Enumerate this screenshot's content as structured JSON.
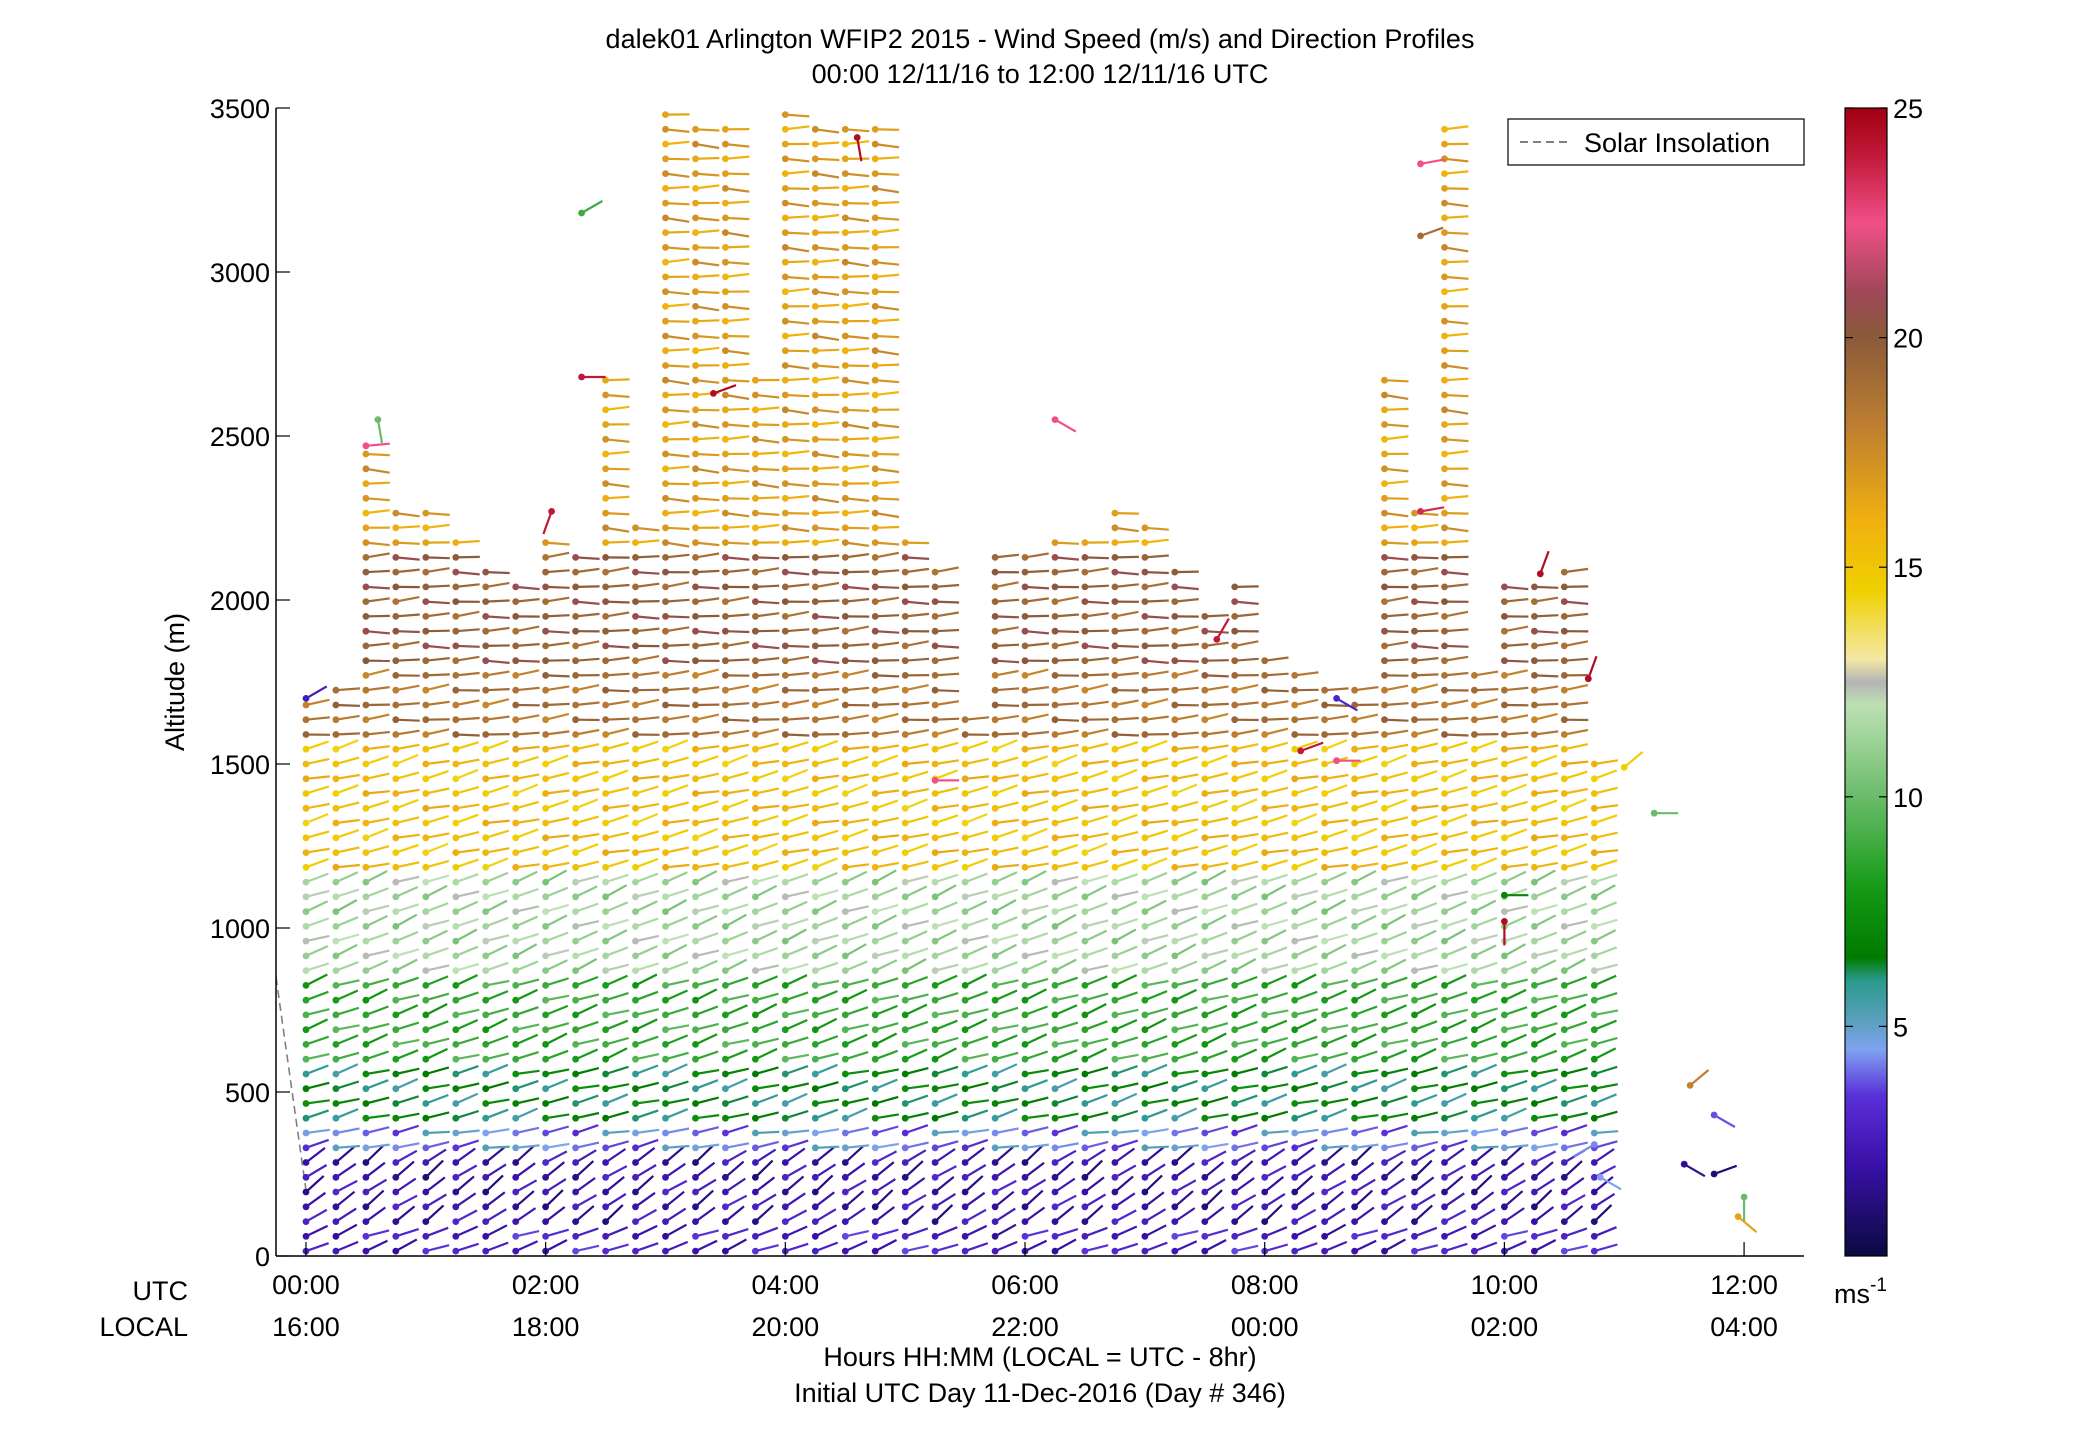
{
  "chart_data": {
    "type": "wind-barb-profile",
    "title": "dalek01 Arlington WFIP2 2015 - Wind Speed (m/s) and Direction Profiles",
    "subtitle": "00:00 12/11/16 to 12:00 12/11/16  UTC",
    "ylabel": "Altitude (m)",
    "xlabel": "Hours HH:MM  (LOCAL = UTC - 8hr)",
    "xlabel2": "Initial UTC Day 11-Dec-2016 (Day # 346)",
    "xlim": [
      -0.25,
      12.5
    ],
    "ylim": [
      0,
      3500
    ],
    "yticks": [
      0,
      500,
      1000,
      1500,
      2000,
      2500,
      3000,
      3500
    ],
    "xrow_labels": {
      "utc": "UTC",
      "local": "LOCAL"
    },
    "xticks": [
      {
        "h": 0,
        "utc": "00:00",
        "local": "16:00"
      },
      {
        "h": 2,
        "utc": "02:00",
        "local": "18:00"
      },
      {
        "h": 4,
        "utc": "04:00",
        "local": "20:00"
      },
      {
        "h": 6,
        "utc": "06:00",
        "local": "22:00"
      },
      {
        "h": 8,
        "utc": "08:00",
        "local": "00:00"
      },
      {
        "h": 10,
        "utc": "10:00",
        "local": "02:00"
      },
      {
        "h": 12,
        "utc": "12:00",
        "local": "04:00"
      }
    ],
    "legend": {
      "label": "Solar Insolation",
      "position": "top-right",
      "line_color": "#808080",
      "line_style": "dashed"
    },
    "solar_insolation": [
      [
        -0.25,
        850
      ],
      [
        0.0,
        200
      ]
    ],
    "colorbar": {
      "range": [
        0,
        25
      ],
      "ticks": [
        5,
        10,
        15,
        20,
        25
      ],
      "unit": "ms",
      "unit_exp": "-1",
      "stops": [
        {
          "v": 0,
          "c": "#0a0a40"
        },
        {
          "v": 2,
          "c": "#3a10a8"
        },
        {
          "v": 3.5,
          "c": "#5a30d8"
        },
        {
          "v": 4.5,
          "c": "#7fa2f0"
        },
        {
          "v": 5.2,
          "c": "#56a0b8"
        },
        {
          "v": 6,
          "c": "#2a9a8c"
        },
        {
          "v": 6.5,
          "c": "#007a00"
        },
        {
          "v": 8,
          "c": "#159a15"
        },
        {
          "v": 10,
          "c": "#6abc6a"
        },
        {
          "v": 12,
          "c": "#bde0b4"
        },
        {
          "v": 12.5,
          "c": "#b4b4b4"
        },
        {
          "v": 13,
          "c": "#f4e8a4"
        },
        {
          "v": 14.5,
          "c": "#f0d000"
        },
        {
          "v": 16,
          "c": "#f0b010"
        },
        {
          "v": 18,
          "c": "#c08030"
        },
        {
          "v": 20,
          "c": "#8a5a3a"
        },
        {
          "v": 21,
          "c": "#a04858"
        },
        {
          "v": 22.5,
          "c": "#f05088"
        },
        {
          "v": 24,
          "c": "#c01838"
        },
        {
          "v": 25,
          "c": "#a00010"
        }
      ]
    },
    "profile_layers": [
      {
        "from": 0,
        "to": 100,
        "speed": 2.8,
        "dir": 250
      },
      {
        "from": 100,
        "to": 300,
        "speed": 2.2,
        "dir": 235
      },
      {
        "from": 300,
        "to": 420,
        "speed": 4.4,
        "dir": 260
      },
      {
        "from": 420,
        "to": 560,
        "speed": 6.6,
        "dir": 255
      },
      {
        "from": 560,
        "to": 850,
        "speed": 8.8,
        "dir": 252
      },
      {
        "from": 850,
        "to": 1150,
        "speed": 11.5,
        "dir": 250
      },
      {
        "from": 1150,
        "to": 1550,
        "speed": 15.4,
        "dir": 257
      },
      {
        "from": 1550,
        "to": 1800,
        "speed": 18.8,
        "dir": 265
      },
      {
        "from": 1800,
        "to": 2150,
        "speed": 19.8,
        "dir": 268
      },
      {
        "from": 2150,
        "to": 3500,
        "speed": 16.8,
        "dir": 272
      }
    ],
    "profile_tops": [
      {
        "h": 0.0,
        "top": 1700
      },
      {
        "h": 0.25,
        "top": 1750
      },
      {
        "h": 0.5,
        "top": 2450
      },
      {
        "h": 0.75,
        "top": 2300
      },
      {
        "h": 1.0,
        "top": 2300
      },
      {
        "h": 1.25,
        "top": 2200
      },
      {
        "h": 1.5,
        "top": 2100
      },
      {
        "h": 1.75,
        "top": 2050
      },
      {
        "h": 2.0,
        "top": 2200
      },
      {
        "h": 2.25,
        "top": 2150
      },
      {
        "h": 2.5,
        "top": 2700
      },
      {
        "h": 2.75,
        "top": 2250
      },
      {
        "h": 3.0,
        "top": 3480
      },
      {
        "h": 3.25,
        "top": 3470
      },
      {
        "h": 3.5,
        "top": 3470
      },
      {
        "h": 3.75,
        "top": 2700
      },
      {
        "h": 4.0,
        "top": 3480
      },
      {
        "h": 4.25,
        "top": 3470
      },
      {
        "h": 4.5,
        "top": 3470
      },
      {
        "h": 4.75,
        "top": 3470
      },
      {
        "h": 5.0,
        "top": 2200
      },
      {
        "h": 5.25,
        "top": 2100
      },
      {
        "h": 5.5,
        "top": 1650
      },
      {
        "h": 5.75,
        "top": 2150
      },
      {
        "h": 6.0,
        "top": 2150
      },
      {
        "h": 6.25,
        "top": 2200
      },
      {
        "h": 6.5,
        "top": 2200
      },
      {
        "h": 6.75,
        "top": 2300
      },
      {
        "h": 7.0,
        "top": 2250
      },
      {
        "h": 7.25,
        "top": 2100
      },
      {
        "h": 7.5,
        "top": 1950
      },
      {
        "h": 7.75,
        "top": 2050
      },
      {
        "h": 8.0,
        "top": 1850
      },
      {
        "h": 8.25,
        "top": 1800
      },
      {
        "h": 8.5,
        "top": 1750
      },
      {
        "h": 8.75,
        "top": 1750
      },
      {
        "h": 9.0,
        "top": 2700
      },
      {
        "h": 9.25,
        "top": 2300
      },
      {
        "h": 9.5,
        "top": 3460
      },
      {
        "h": 9.75,
        "top": 1800
      },
      {
        "h": 10.0,
        "top": 2050
      },
      {
        "h": 10.25,
        "top": 2080
      },
      {
        "h": 10.5,
        "top": 2090
      },
      {
        "h": 10.75,
        "top": 1500
      }
    ],
    "scattered_barbs": [
      {
        "h": 3.4,
        "alt": 2630,
        "speed": 24.5,
        "dir": 250
      },
      {
        "h": 4.6,
        "alt": 3410,
        "speed": 24.5,
        "dir": 350
      },
      {
        "h": 2.3,
        "alt": 2680,
        "speed": 24.0,
        "dir": 270
      },
      {
        "h": 2.05,
        "alt": 2270,
        "speed": 24.0,
        "dir": 20
      },
      {
        "h": 0.5,
        "alt": 2470,
        "speed": 22.5,
        "dir": 265
      },
      {
        "h": 2.3,
        "alt": 3180,
        "speed": 9.0,
        "dir": 240
      },
      {
        "h": 0.6,
        "alt": 2550,
        "speed": 10.0,
        "dir": 350
      },
      {
        "h": 6.25,
        "alt": 2550,
        "speed": 22.5,
        "dir": 300
      },
      {
        "h": 9.3,
        "alt": 3330,
        "speed": 22.5,
        "dir": 260
      },
      {
        "h": 9.3,
        "alt": 3110,
        "speed": 19.0,
        "dir": 250
      },
      {
        "h": 9.3,
        "alt": 2270,
        "speed": 23.5,
        "dir": 260
      },
      {
        "h": 10.3,
        "alt": 2080,
        "speed": 24.5,
        "dir": 200
      },
      {
        "h": 10.7,
        "alt": 1760,
        "speed": 24.5,
        "dir": 200
      },
      {
        "h": 7.6,
        "alt": 1880,
        "speed": 24.0,
        "dir": 210
      },
      {
        "h": 8.3,
        "alt": 1540,
        "speed": 24.0,
        "dir": 250
      },
      {
        "h": 8.6,
        "alt": 1510,
        "speed": 22.5,
        "dir": 270
      },
      {
        "h": 5.25,
        "alt": 1450,
        "speed": 22.5,
        "dir": 270
      },
      {
        "h": 8.6,
        "alt": 1700,
        "speed": 3.0,
        "dir": 300
      },
      {
        "h": 0.0,
        "alt": 1700,
        "speed": 2.5,
        "dir": 240
      },
      {
        "h": 10.0,
        "alt": 1100,
        "speed": 7.0,
        "dir": 270
      },
      {
        "h": 10.0,
        "alt": 1020,
        "speed": 24.5,
        "dir": 0
      },
      {
        "h": 11.25,
        "alt": 1350,
        "speed": 10.0,
        "dir": 270
      },
      {
        "h": 11.0,
        "alt": 1490,
        "speed": 14.5,
        "dir": 230
      },
      {
        "h": 11.55,
        "alt": 520,
        "speed": 18.0,
        "dir": 230
      },
      {
        "h": 11.75,
        "alt": 430,
        "speed": 3.8,
        "dir": 300
      },
      {
        "h": 11.5,
        "alt": 280,
        "speed": 1.5,
        "dir": 300
      },
      {
        "h": 11.75,
        "alt": 250,
        "speed": 1.0,
        "dir": 250
      },
      {
        "h": 11.95,
        "alt": 120,
        "speed": 16.5,
        "dir": 310
      },
      {
        "h": 12.0,
        "alt": 180,
        "speed": 10.0,
        "dir": 0
      },
      {
        "h": 10.75,
        "alt": 340,
        "speed": 4.3,
        "dir": 60
      },
      {
        "h": 10.8,
        "alt": 240,
        "speed": 4.5,
        "dir": 300
      }
    ]
  }
}
